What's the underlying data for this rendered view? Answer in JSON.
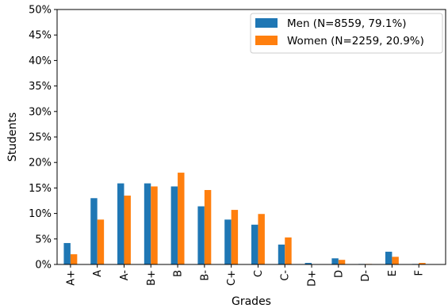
{
  "chart_data": {
    "type": "bar",
    "categories": [
      "A+",
      "A",
      "A-",
      "B+",
      "B",
      "B-",
      "C+",
      "C",
      "C-",
      "D+",
      "D",
      "D-",
      "E",
      "F"
    ],
    "series": [
      {
        "name": "Men (N=8559, 79.1%)",
        "color": "#1f77b4",
        "values": [
          4.2,
          13.0,
          15.9,
          15.9,
          15.3,
          11.4,
          8.8,
          7.8,
          3.9,
          0.3,
          1.2,
          0.1,
          2.5,
          0.1
        ]
      },
      {
        "name": "Women (N=2259, 20.9%)",
        "color": "#ff7f0e",
        "values": [
          2.0,
          8.8,
          13.5,
          15.3,
          18.0,
          14.6,
          10.7,
          9.9,
          5.3,
          0.0,
          0.9,
          0.1,
          1.5,
          0.3
        ]
      }
    ],
    "xlabel": "Grades",
    "ylabel": "Students",
    "ylim": [
      0,
      50
    ],
    "yticks": [
      0,
      5,
      10,
      15,
      20,
      25,
      30,
      35,
      40,
      45,
      50
    ],
    "ytick_suffix": "%",
    "legend_position": "top-right",
    "grid": false
  }
}
